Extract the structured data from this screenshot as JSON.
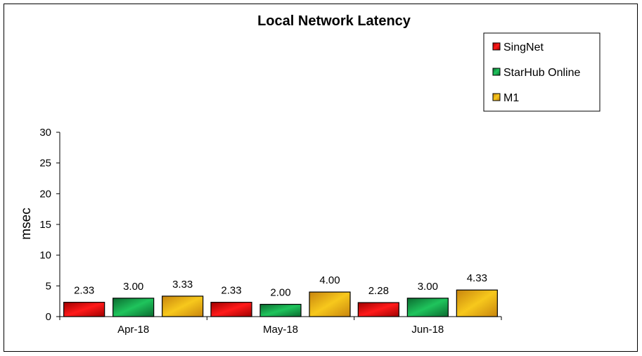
{
  "chart_data": {
    "type": "bar",
    "title": "Local Network Latency",
    "xlabel": "",
    "ylabel": "msec",
    "ylim": [
      0,
      30
    ],
    "yticks": [
      0,
      5,
      10,
      15,
      20,
      25,
      30
    ],
    "categories": [
      "Apr-18",
      "May-18",
      "Jun-18"
    ],
    "series": [
      {
        "name": "SingNet",
        "values": [
          2.33,
          2.33,
          2.28
        ],
        "labels": [
          "2.33",
          "2.33",
          "2.28"
        ],
        "color": "#e8000b",
        "color_light": "#ff1a1a",
        "color_dark": "#a00000"
      },
      {
        "name": "StarHub Online",
        "values": [
          3.0,
          2.0,
          3.0
        ],
        "labels": [
          "3.00",
          "2.00",
          "3.00"
        ],
        "color": "#12a04a",
        "color_light": "#1fc45c",
        "color_dark": "#0b6b30"
      },
      {
        "name": "M1",
        "values": [
          3.33,
          4.0,
          4.33
        ],
        "labels": [
          "3.33",
          "4.00",
          "4.33"
        ],
        "color": "#e5a913",
        "color_light": "#f7c81c",
        "color_dark": "#c8850e"
      }
    ],
    "legend": "top-right",
    "grid": false
  }
}
